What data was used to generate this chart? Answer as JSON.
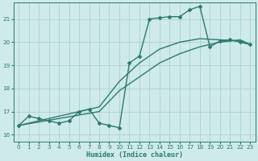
{
  "title": "",
  "xlabel": "Humidex (Indice chaleur)",
  "ylabel": "",
  "bg_color": "#ceeaea",
  "grid_color": "#aed0d0",
  "line_color": "#2d7a70",
  "xlim": [
    -0.5,
    23.5
  ],
  "ylim": [
    15.7,
    21.7
  ],
  "yticks": [
    16,
    17,
    18,
    19,
    20,
    21
  ],
  "xticks": [
    0,
    1,
    2,
    3,
    4,
    5,
    6,
    7,
    8,
    9,
    10,
    11,
    12,
    13,
    14,
    15,
    16,
    17,
    18,
    19,
    20,
    21,
    22,
    23
  ],
  "lines": [
    {
      "x": [
        0,
        1,
        2,
        3,
        4,
        5,
        6,
        7,
        8,
        9,
        10,
        11,
        12,
        13,
        14,
        15,
        16,
        17,
        18,
        19,
        20,
        21,
        22,
        23
      ],
      "y": [
        16.4,
        16.8,
        16.7,
        16.6,
        16.5,
        16.6,
        17.0,
        17.1,
        16.5,
        16.4,
        16.3,
        19.1,
        19.4,
        21.0,
        21.05,
        21.1,
        21.1,
        21.4,
        21.55,
        19.8,
        20.05,
        20.1,
        20.0,
        19.9
      ],
      "marker": "D",
      "markersize": 2.0,
      "linewidth": 1.0
    },
    {
      "x": [
        0,
        2,
        4,
        6,
        8,
        10,
        12,
        14,
        16,
        18,
        20,
        22,
        23
      ],
      "y": [
        16.4,
        16.55,
        16.7,
        16.85,
        17.0,
        17.9,
        18.5,
        19.1,
        19.5,
        19.8,
        20.0,
        20.1,
        19.9
      ],
      "marker": null,
      "markersize": 0,
      "linewidth": 1.0
    },
    {
      "x": [
        0,
        2,
        4,
        6,
        8,
        10,
        12,
        14,
        16,
        18,
        20,
        22,
        23
      ],
      "y": [
        16.4,
        16.6,
        16.8,
        17.0,
        17.2,
        18.3,
        19.1,
        19.7,
        20.0,
        20.15,
        20.1,
        20.05,
        19.9
      ],
      "marker": null,
      "markersize": 0,
      "linewidth": 1.0
    }
  ]
}
